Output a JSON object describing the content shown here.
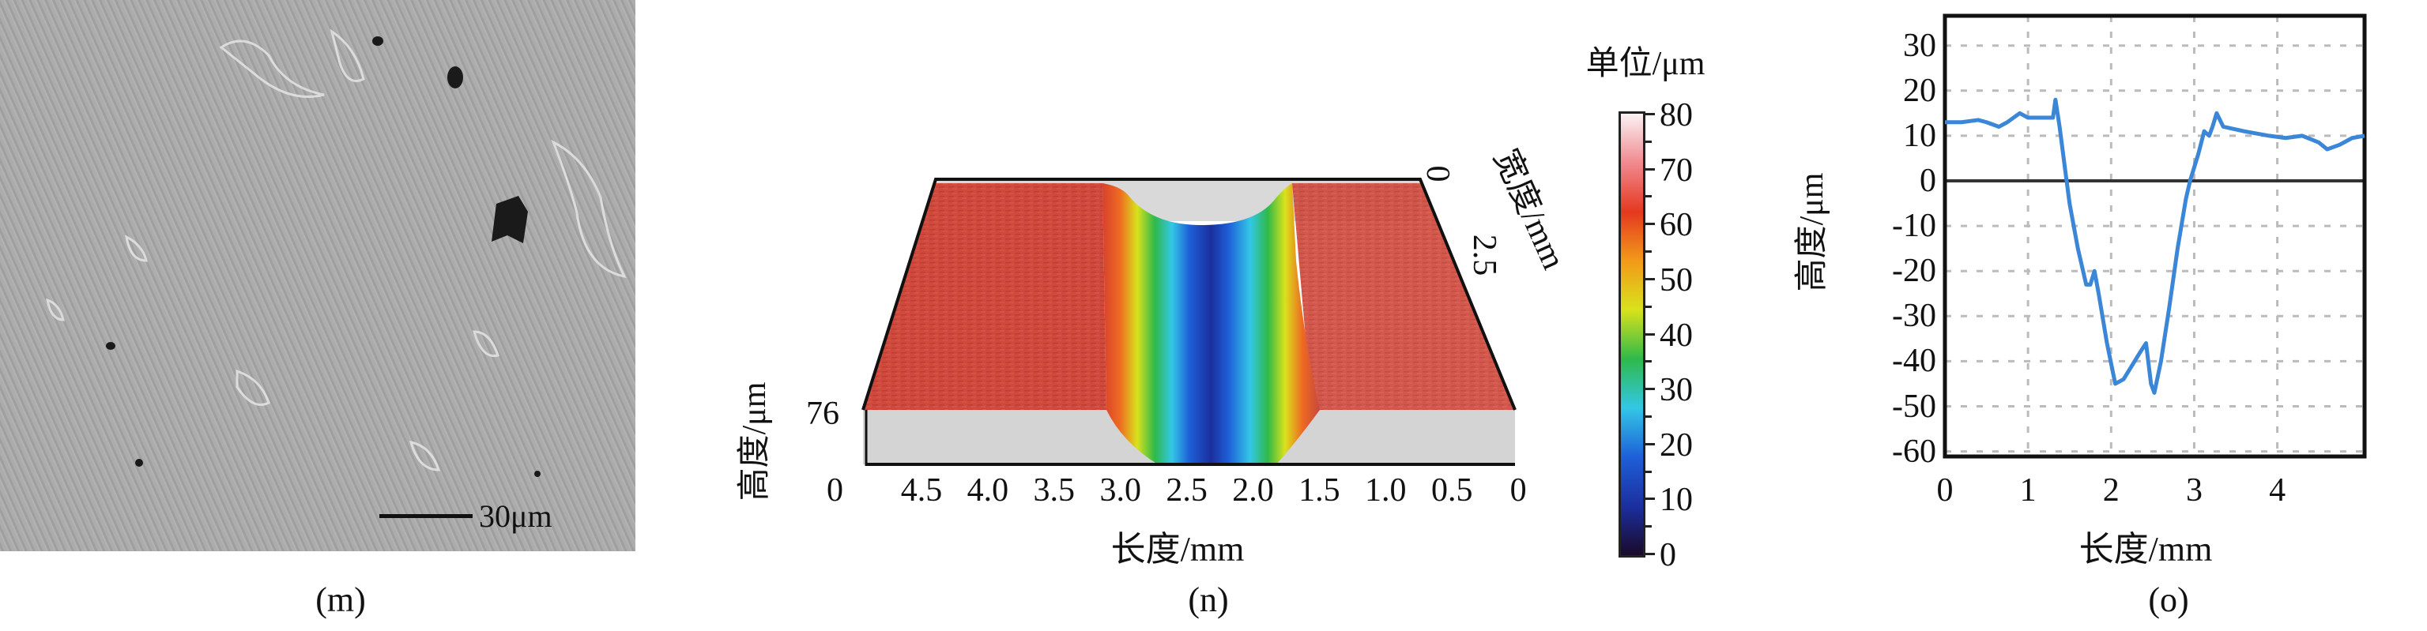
{
  "panels": {
    "m": {
      "caption": "(m)",
      "scale_bar_label": "30μm"
    },
    "n": {
      "caption": "(n)",
      "colorbar_title": "单位/μm",
      "colorbar_ticks": [
        "80",
        "70",
        "60",
        "50",
        "40",
        "30",
        "20",
        "10",
        "0"
      ],
      "colorbar_range": [
        0,
        80
      ],
      "colorbar_colors": [
        "#1a0a2a",
        "#1b2f9e",
        "#1e5fd8",
        "#33c7e6",
        "#2fb94a",
        "#d9e21c",
        "#f29a1a",
        "#e5381f",
        "#f08a8f",
        "#fbf2f4"
      ],
      "x_label": "长度/mm",
      "x_ticks": [
        "4.5",
        "4.0",
        "3.5",
        "3.0",
        "2.5",
        "2.0",
        "1.5",
        "1.0",
        "0.5",
        "0"
      ],
      "y_label": "宽度/mm",
      "y_ticks": [
        "0",
        "2.5"
      ],
      "z_label": "高度/μm",
      "z_ticks": [
        "76",
        "0"
      ]
    },
    "o": {
      "caption": "(o)"
    }
  },
  "chart_data": [
    {
      "type": "surface",
      "panel": "n",
      "xlabel": "长度/mm",
      "ylabel": "宽度/mm",
      "zlabel": "高度/μm",
      "x_ticks": [
        4.5,
        4.0,
        3.5,
        3.0,
        2.5,
        2.0,
        1.5,
        1.0,
        0.5,
        0
      ],
      "y_ticks": [
        0,
        2.5
      ],
      "z_ticks": [
        76,
        0
      ],
      "colorbar": {
        "title": "单位/μm",
        "range": [
          0,
          80
        ],
        "ticks": [
          80,
          70,
          60,
          50,
          40,
          30,
          20,
          10,
          0
        ]
      }
    },
    {
      "type": "line",
      "panel": "o",
      "xlabel": "长度/mm",
      "ylabel": "高度/μm",
      "xlim": [
        0,
        5.05
      ],
      "ylim": [
        -63,
        35
      ],
      "x_ticks": [
        "0",
        "1",
        "2",
        "3",
        "4"
      ],
      "y_ticks": [
        "30",
        "20",
        "10",
        "0",
        "-10",
        "-20",
        "-30",
        "-40",
        "-50",
        "-60"
      ],
      "grid": true,
      "line_color": "#3b86d6",
      "x": [
        0,
        0.2,
        0.4,
        0.5,
        0.65,
        0.75,
        0.9,
        1.0,
        1.15,
        1.3,
        1.33,
        1.38,
        1.45,
        1.5,
        1.6,
        1.7,
        1.75,
        1.8,
        1.85,
        1.95,
        2.05,
        2.15,
        2.25,
        2.35,
        2.42,
        2.48,
        2.52,
        2.6,
        2.7,
        2.8,
        2.9,
        2.95,
        3.05,
        3.12,
        3.18,
        3.22,
        3.27,
        3.35,
        3.6,
        3.9,
        4.1,
        4.3,
        4.5,
        4.6,
        4.75,
        4.9,
        5.05
      ],
      "y": [
        13,
        13,
        13.5,
        13,
        12,
        13,
        15,
        14,
        14,
        14,
        18,
        12,
        2,
        -5,
        -15,
        -23,
        -23,
        -20,
        -25,
        -36,
        -45,
        -44,
        -41,
        -38,
        -36,
        -45,
        -47,
        -40,
        -28,
        -15,
        -4,
        0,
        6,
        11,
        10,
        12,
        15,
        12,
        11,
        10,
        9.5,
        10,
        8.5,
        7,
        8,
        9.5,
        10
      ]
    }
  ]
}
